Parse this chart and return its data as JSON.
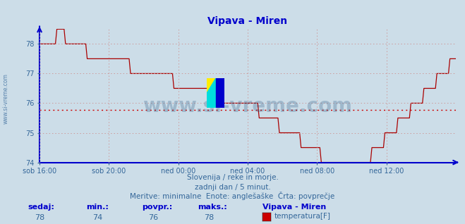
{
  "title": "Vipava - Miren",
  "bg_color": "#ccdde8",
  "plot_bg_color": "#ccdde8",
  "line_color": "#aa0000",
  "avg_line_color": "#cc0000",
  "avg_value": 75.78,
  "ylim": [
    74,
    78.5
  ],
  "yticks": [
    74,
    75,
    76,
    77,
    78
  ],
  "tick_color": "#336699",
  "grid_color": "#cc9999",
  "axis_color": "#0000cc",
  "watermark": "www.si-vreme.com",
  "watermark_color": "#1a4d7a",
  "watermark_alpha": 0.25,
  "subtitle1": "Slovenija / reke in morje.",
  "subtitle2": "zadnji dan / 5 minut.",
  "subtitle3": "Meritve: minimalne  Enote: anglešaške  Črta: povprečje",
  "subtitle_color": "#336699",
  "footer_labels": [
    "sedaj:",
    "min.:",
    "povpr.:",
    "maks.:"
  ],
  "footer_values": [
    "78",
    "74",
    "76",
    "78"
  ],
  "footer_label_color": "#0000cc",
  "footer_value_color": "#336699",
  "legend_title": "Vipava - Miren",
  "legend_label": "temperatura[F]",
  "legend_color": "#cc0000",
  "side_text": "www.si-vreme.com",
  "side_text_color": "#336699",
  "num_points": 289,
  "xtick_labels": [
    "sob 16:00",
    "sob 20:00",
    "ned 00:00",
    "ned 04:00",
    "ned 08:00",
    "ned 12:00"
  ],
  "xtick_positions": [
    0,
    48,
    96,
    144,
    192,
    240
  ]
}
